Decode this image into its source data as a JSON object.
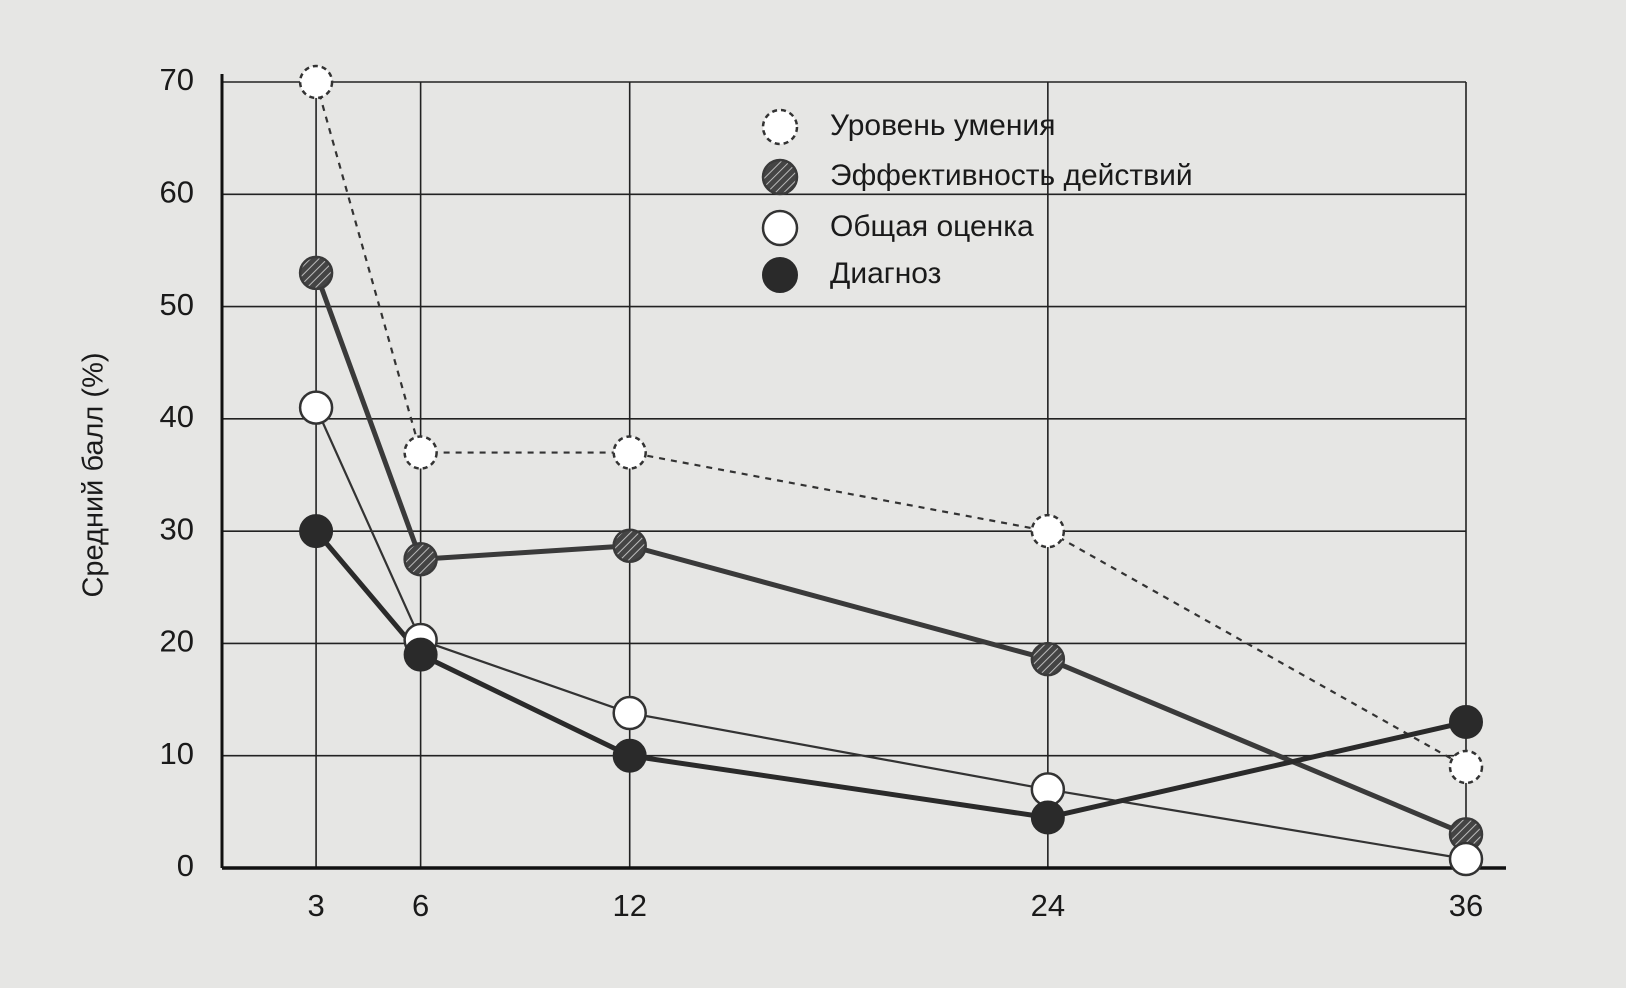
{
  "chart_data": {
    "type": "line",
    "y_label": "Средний балл (%)",
    "x": [
      3,
      6,
      12,
      24,
      36
    ],
    "xlim": [
      0.3,
      36
    ],
    "xticks": [
      3,
      6,
      12,
      24,
      36
    ],
    "ylim": [
      0,
      70
    ],
    "yticks": [
      0,
      10,
      20,
      30,
      40,
      50,
      60,
      70
    ],
    "grid": true,
    "legend": "top-right",
    "series": [
      {
        "name": "Уровень умения",
        "color": "#333333",
        "marker": "hollow",
        "line_style": "dashed",
        "values": [
          70,
          37,
          37,
          30,
          9
        ]
      },
      {
        "name": "Эффективность действий",
        "color": "#3a3a3a",
        "marker": "hatched",
        "line_style": "thick",
        "values": [
          53,
          27.5,
          28.7,
          18.6,
          3
        ]
      },
      {
        "name": "Общая оценка",
        "color": "#333333",
        "marker": "hollow",
        "line_style": "thin",
        "values": [
          41,
          20.3,
          13.8,
          7,
          0.8
        ]
      },
      {
        "name": "Диагноз",
        "color": "#2a2a2a",
        "marker": "filled",
        "line_style": "thick",
        "values": [
          30,
          19,
          10,
          4.5,
          13
        ]
      }
    ]
  }
}
